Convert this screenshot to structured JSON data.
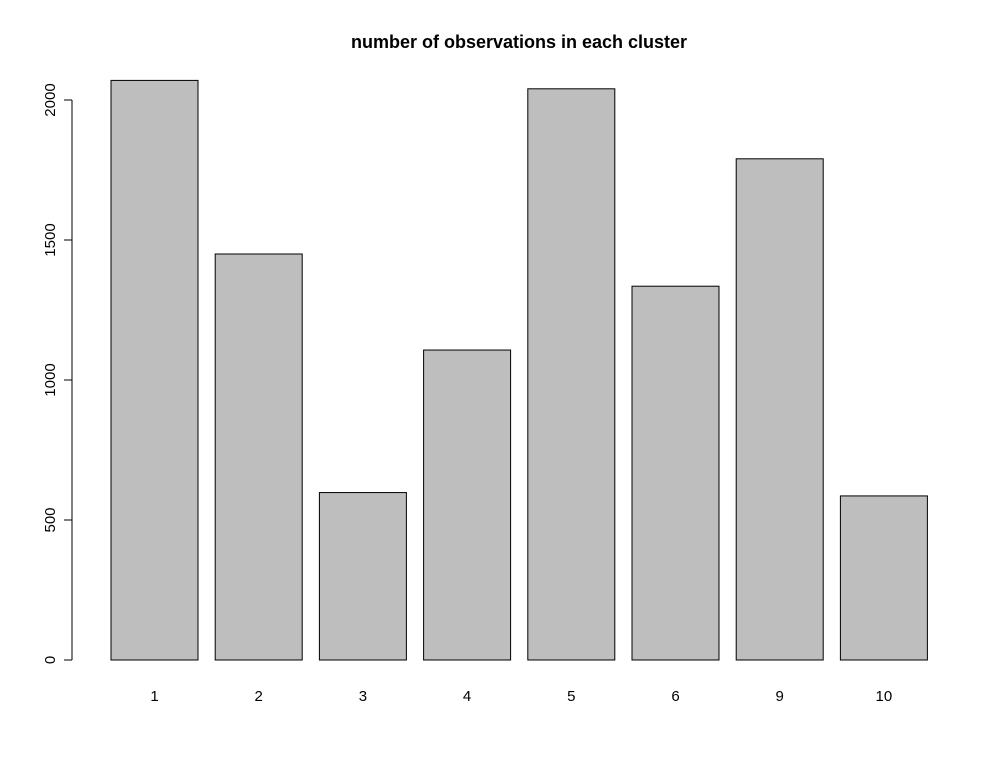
{
  "chart_data": {
    "type": "bar",
    "title": "number of observations in each cluster",
    "xlabel": "",
    "ylabel": "",
    "categories": [
      "1",
      "2",
      "3",
      "4",
      "5",
      "6",
      "9",
      "10"
    ],
    "values": [
      2070,
      1450,
      598,
      1107,
      2040,
      1335,
      1790,
      586
    ],
    "ylim": [
      0,
      2100
    ],
    "yticks": [
      0,
      500,
      1000,
      1500,
      2000
    ],
    "grid": false,
    "bar_fill": "#bebebe",
    "bar_stroke": "#000000"
  }
}
